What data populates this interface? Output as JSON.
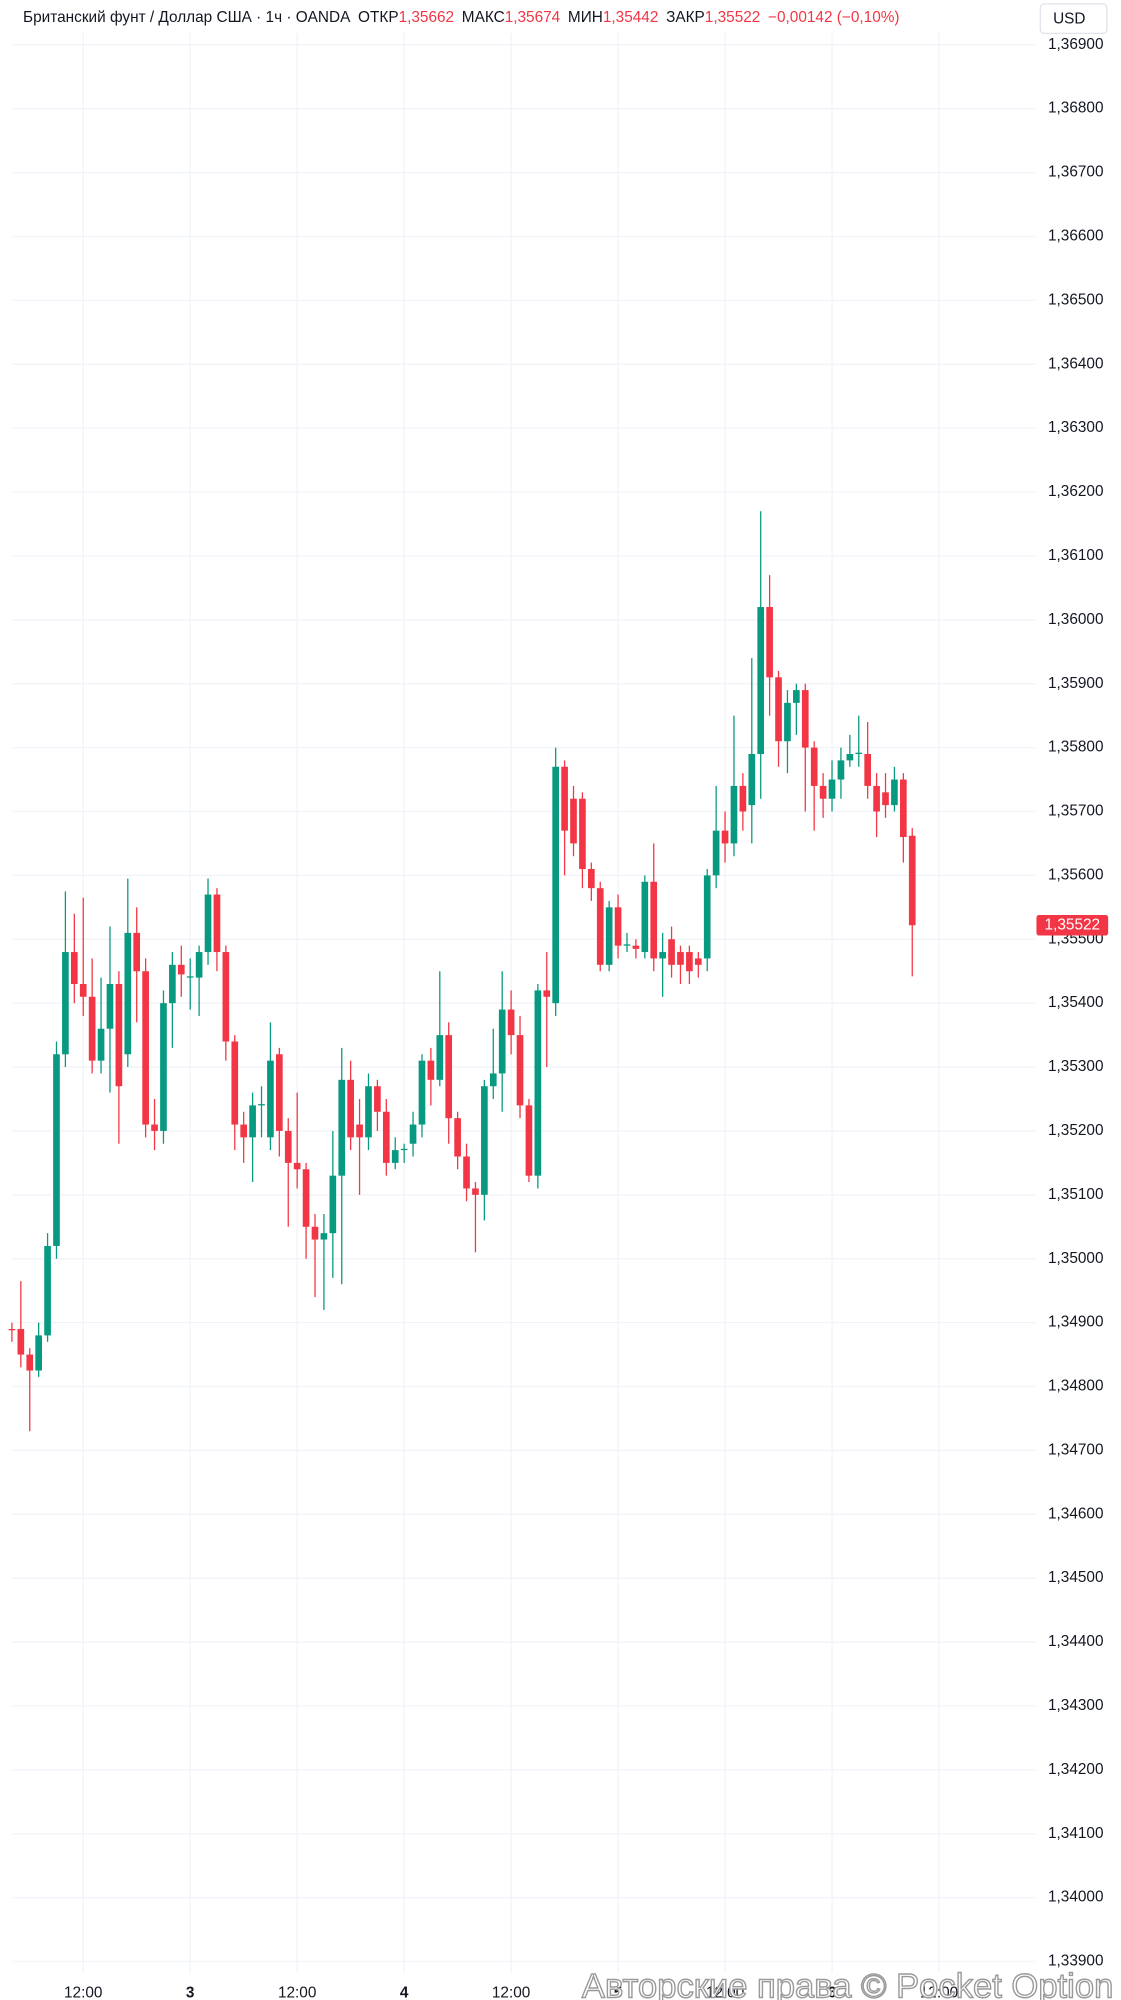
{
  "header": {
    "symbol": "Британский фунт / Доллар США · 1ч · OANDA",
    "open_label": "ОТКР",
    "open": "1,35662",
    "high_label": "МАКС",
    "high": "1,35674",
    "low_label": "МИН",
    "low": "1,35442",
    "close_label": "ЗАКР",
    "close": "1,35522",
    "change": "−0,00142 (−0,10%)",
    "currency": "USD",
    "watermark": "Авторские права © Pocket Option"
  },
  "chart_data": {
    "type": "candlestick",
    "up_color": "#089981",
    "down_color": "#f23645",
    "grid": true,
    "categories": [
      null,
      null,
      null,
      null,
      null,
      null,
      null,
      null,
      "12:00",
      null,
      null,
      null,
      null,
      null,
      null,
      null,
      null,
      null,
      null,
      null,
      "3",
      null,
      null,
      null,
      null,
      null,
      null,
      null,
      null,
      null,
      null,
      null,
      "12:00",
      null,
      null,
      null,
      null,
      null,
      null,
      null,
      null,
      null,
      null,
      null,
      "4",
      null,
      null,
      null,
      null,
      null,
      null,
      null,
      null,
      null,
      null,
      null,
      "12:00",
      null,
      null,
      null,
      null,
      null,
      null,
      null,
      null,
      null,
      null,
      null,
      "5",
      null,
      null,
      null,
      null,
      null,
      null,
      null,
      null,
      null,
      null,
      null,
      "12:00",
      null,
      null,
      null,
      null,
      null,
      null,
      null,
      null,
      null,
      null,
      null,
      "6",
      null,
      null,
      null,
      null,
      null,
      null,
      null,
      null,
      null,
      null,
      null,
      "12:00",
      null,
      null,
      null,
      null,
      null,
      null,
      null,
      null,
      null,
      null
    ],
    "open": [
      1.3489,
      1.3489,
      1.3485,
      1.34825,
      1.3488,
      1.3502,
      1.3532,
      1.3548,
      1.3543,
      1.3541,
      1.3531,
      1.3536,
      1.3543,
      1.3532,
      1.3551,
      1.3545,
      1.3521,
      1.352,
      1.354,
      1.3546,
      1.3544,
      1.3544,
      1.3548,
      1.3557,
      1.3548,
      1.3534,
      1.3521,
      1.3519,
      1.3524,
      1.3519,
      1.3532,
      1.352,
      1.3515,
      1.3514,
      1.3505,
      1.3503,
      1.3504,
      1.3513,
      1.3528,
      1.3521,
      1.3519,
      1.3527,
      1.3523,
      1.3515,
      1.3517,
      1.3518,
      1.3521,
      1.3531,
      1.3528,
      1.3535,
      1.3522,
      1.3516,
      1.3511,
      1.351,
      1.3527,
      1.3529,
      1.3539,
      1.3535,
      1.3524,
      1.3513,
      1.3542,
      1.354,
      1.3577,
      1.3572,
      1.3572,
      1.3561,
      1.3558,
      1.3546,
      1.3555,
      1.3549,
      1.3549,
      1.3548,
      1.3559,
      1.3547,
      1.355,
      1.3548,
      1.3548,
      1.3547,
      1.3547,
      1.356,
      1.3567,
      1.3565,
      1.3574,
      1.3571,
      1.3579,
      1.3602,
      1.3591,
      1.3581,
      1.3587,
      1.3589,
      1.358,
      1.3574,
      1.3572,
      1.3575,
      1.3578,
      1.3579,
      1.3579,
      1.3574,
      1.3573,
      1.3571,
      1.3575,
      1.35662,
      null,
      null,
      null,
      null,
      null,
      null,
      null,
      null,
      null,
      null,
      null,
      null,
      null
    ],
    "high": [
      1.349,
      1.34965,
      1.3486,
      1.349,
      1.3504,
      1.3534,
      1.35575,
      1.3554,
      1.35565,
      1.3547,
      1.3544,
      1.3552,
      1.3545,
      1.35595,
      1.3555,
      1.3547,
      1.3525,
      1.3542,
      1.3548,
      1.3549,
      1.3547,
      1.3549,
      1.35595,
      1.3558,
      1.3549,
      1.3535,
      1.3523,
      1.3526,
      1.3527,
      1.3537,
      1.3533,
      1.3522,
      1.3526,
      1.3515,
      1.3507,
      1.3507,
      1.352,
      1.3533,
      1.3531,
      1.3525,
      1.3529,
      1.3528,
      1.3525,
      1.3519,
      1.3518,
      1.3523,
      1.3532,
      1.3533,
      1.3545,
      1.3537,
      1.3523,
      1.3518,
      1.3512,
      1.3528,
      1.3536,
      1.3545,
      1.3542,
      1.3538,
      1.3525,
      1.3543,
      1.3548,
      1.358,
      1.3578,
      1.3574,
      1.3573,
      1.3562,
      1.3559,
      1.3556,
      1.3557,
      1.3551,
      1.355,
      1.356,
      1.3565,
      1.3551,
      1.3552,
      1.3549,
      1.3549,
      1.3548,
      1.3561,
      1.3574,
      1.357,
      1.3585,
      1.3576,
      1.3594,
      1.3617,
      1.3607,
      1.3592,
      1.3589,
      1.359,
      1.359,
      1.3581,
      1.3576,
      1.3578,
      1.358,
      1.3582,
      1.3585,
      1.3584,
      1.3576,
      1.3576,
      1.3577,
      1.3576,
      1.35674,
      null,
      null,
      null,
      null,
      null,
      null,
      null,
      null,
      null,
      null,
      null,
      null,
      null
    ],
    "low": [
      1.3487,
      1.3483,
      1.3473,
      1.34815,
      1.3487,
      1.35,
      1.353,
      1.354,
      1.3538,
      1.3529,
      1.3529,
      1.3526,
      1.3518,
      1.353,
      1.3537,
      1.3519,
      1.3517,
      1.3518,
      1.3533,
      1.3541,
      1.3539,
      1.3538,
      1.3546,
      1.3545,
      1.3531,
      1.3517,
      1.3515,
      1.3512,
      1.3519,
      1.3517,
      1.3516,
      1.3505,
      1.3511,
      1.35,
      1.3494,
      1.3492,
      1.3497,
      1.3496,
      1.3517,
      1.351,
      1.3517,
      1.352,
      1.3513,
      1.3514,
      1.3515,
      1.3516,
      1.3519,
      1.3524,
      1.3527,
      1.3518,
      1.3514,
      1.3509,
      1.3501,
      1.3506,
      1.3525,
      1.3523,
      1.3532,
      1.3522,
      1.3512,
      1.3511,
      1.353,
      1.3538,
      1.356,
      1.3563,
      1.3558,
      1.3556,
      1.3545,
      1.3545,
      1.3547,
      1.3548,
      1.3547,
      1.3547,
      1.3545,
      1.3541,
      1.3544,
      1.3543,
      1.3543,
      1.3544,
      1.3545,
      1.3558,
      1.3562,
      1.3563,
      1.3567,
      1.3565,
      1.3572,
      1.3585,
      1.3577,
      1.3576,
      1.3582,
      1.357,
      1.3567,
      1.3569,
      1.357,
      1.3572,
      1.3577,
      1.3577,
      1.3572,
      1.3566,
      1.3569,
      1.357,
      1.3562,
      1.35442,
      null,
      null,
      null,
      null,
      null,
      null,
      null,
      null,
      null,
      null,
      null,
      null,
      null
    ],
    "close": [
      1.34888,
      1.3485,
      1.34825,
      1.3488,
      1.3502,
      1.3532,
      1.3548,
      1.3543,
      1.3541,
      1.3531,
      1.3536,
      1.3543,
      1.3527,
      1.3551,
      1.3545,
      1.3521,
      1.352,
      1.354,
      1.3546,
      1.35445,
      1.35442,
      1.3548,
      1.3557,
      1.3548,
      1.3534,
      1.3521,
      1.3519,
      1.3524,
      1.35242,
      1.3531,
      1.352,
      1.3515,
      1.3514,
      1.3505,
      1.3503,
      1.3504,
      1.3513,
      1.3528,
      1.3519,
      1.3519,
      1.3527,
      1.3523,
      1.3515,
      1.3517,
      1.35172,
      1.3521,
      1.3531,
      1.3528,
      1.3535,
      1.3522,
      1.3516,
      1.3511,
      1.351,
      1.3527,
      1.3529,
      1.3539,
      1.3535,
      1.3524,
      1.3513,
      1.3542,
      1.3541,
      1.3577,
      1.3567,
      1.3565,
      1.3561,
      1.3558,
      1.3546,
      1.3555,
      1.3549,
      1.35492,
      1.35485,
      1.3559,
      1.3547,
      1.3548,
      1.3546,
      1.3546,
      1.3545,
      1.3546,
      1.356,
      1.3567,
      1.3565,
      1.3574,
      1.357,
      1.3579,
      1.3602,
      1.3591,
      1.3581,
      1.3587,
      1.3589,
      1.358,
      1.3574,
      1.3572,
      1.3575,
      1.3578,
      1.3579,
      1.35792,
      1.3574,
      1.357,
      1.3571,
      1.3575,
      1.3566,
      1.35522,
      null,
      null,
      null,
      null,
      null,
      null,
      null,
      null,
      null,
      null,
      null,
      null,
      null
    ],
    "ylim": [
      1.33882,
      1.3697
    ],
    "yticks": [
      {
        "value": 1.339,
        "label": "1,33900"
      },
      {
        "value": 1.34,
        "label": "1,34000"
      },
      {
        "value": 1.341,
        "label": "1,34100"
      },
      {
        "value": 1.342,
        "label": "1,34200"
      },
      {
        "value": 1.343,
        "label": "1,34300"
      },
      {
        "value": 1.344,
        "label": "1,34400"
      },
      {
        "value": 1.345,
        "label": "1,34500"
      },
      {
        "value": 1.346,
        "label": "1,34600"
      },
      {
        "value": 1.347,
        "label": "1,34700"
      },
      {
        "value": 1.348,
        "label": "1,34800"
      },
      {
        "value": 1.349,
        "label": "1,34900"
      },
      {
        "value": 1.35,
        "label": "1,35000"
      },
      {
        "value": 1.351,
        "label": "1,35100"
      },
      {
        "value": 1.352,
        "label": "1,35200"
      },
      {
        "value": 1.353,
        "label": "1,35300"
      },
      {
        "value": 1.354,
        "label": "1,35400"
      },
      {
        "value": 1.355,
        "label": "1,35500"
      },
      {
        "value": 1.356,
        "label": "1,35600"
      },
      {
        "value": 1.357,
        "label": "1,35700"
      },
      {
        "value": 1.358,
        "label": "1,35800"
      },
      {
        "value": 1.359,
        "label": "1,35900"
      },
      {
        "value": 1.36,
        "label": "1,36000"
      },
      {
        "value": 1.361,
        "label": "1,36100"
      },
      {
        "value": 1.362,
        "label": "1,36200"
      },
      {
        "value": 1.363,
        "label": "1,36300"
      },
      {
        "value": 1.364,
        "label": "1,36400"
      },
      {
        "value": 1.365,
        "label": "1,36500"
      },
      {
        "value": 1.366,
        "label": "1,36600"
      },
      {
        "value": 1.367,
        "label": "1,36700"
      },
      {
        "value": 1.368,
        "label": "1,36800"
      },
      {
        "value": 1.369,
        "label": "1,36900"
      }
    ]
  }
}
